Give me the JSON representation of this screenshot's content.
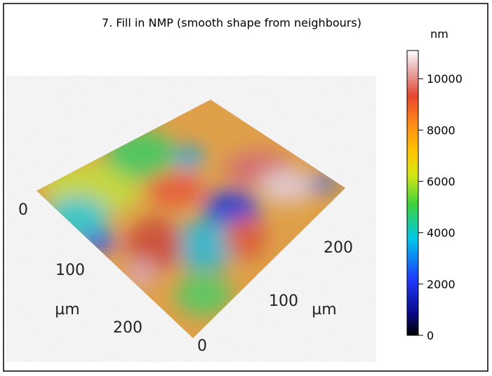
{
  "title": "7. Fill in NMP (smooth shape from neighbours)",
  "colorbar": {
    "label": "nm",
    "lim": [
      0,
      11100
    ],
    "ticks": [
      0,
      2000,
      4000,
      6000,
      8000,
      10000
    ]
  },
  "axes": {
    "x": {
      "label": "µm",
      "ticks": [
        0,
        100,
        200
      ]
    },
    "y": {
      "label": "µm",
      "ticks": [
        0,
        100,
        200
      ]
    }
  }
}
